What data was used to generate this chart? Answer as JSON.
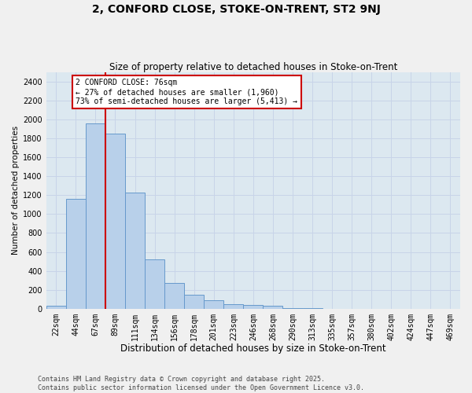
{
  "title": "2, CONFORD CLOSE, STOKE-ON-TRENT, ST2 9NJ",
  "subtitle": "Size of property relative to detached houses in Stoke-on-Trent",
  "xlabel": "Distribution of detached houses by size in Stoke-on-Trent",
  "ylabel": "Number of detached properties",
  "categories": [
    "22sqm",
    "44sqm",
    "67sqm",
    "89sqm",
    "111sqm",
    "134sqm",
    "156sqm",
    "178sqm",
    "201sqm",
    "223sqm",
    "246sqm",
    "268sqm",
    "290sqm",
    "313sqm",
    "335sqm",
    "357sqm",
    "380sqm",
    "402sqm",
    "424sqm",
    "447sqm",
    "469sqm"
  ],
  "values": [
    30,
    1160,
    1960,
    1850,
    1230,
    520,
    270,
    150,
    90,
    50,
    40,
    30,
    10,
    5,
    0,
    0,
    0,
    0,
    0,
    0,
    0
  ],
  "bar_color": "#b8d0ea",
  "bar_edge_color": "#6699cc",
  "vline_index": 2.5,
  "vline_color": "#cc0000",
  "annotation_text": "2 CONFORD CLOSE: 76sqm\n← 27% of detached houses are smaller (1,960)\n73% of semi-detached houses are larger (5,413) →",
  "annotation_box_color": "#ffffff",
  "annotation_box_edge": "#cc0000",
  "ylim": [
    0,
    2500
  ],
  "yticks": [
    0,
    200,
    400,
    600,
    800,
    1000,
    1200,
    1400,
    1600,
    1800,
    2000,
    2200,
    2400
  ],
  "grid_color": "#c8d4e8",
  "bg_color": "#dce8f0",
  "fig_color": "#f0f0f0",
  "footer": "Contains HM Land Registry data © Crown copyright and database right 2025.\nContains public sector information licensed under the Open Government Licence v3.0.",
  "title_fontsize": 10,
  "subtitle_fontsize": 8.5,
  "xlabel_fontsize": 8.5,
  "ylabel_fontsize": 7.5,
  "tick_fontsize": 7,
  "annotation_fontsize": 7,
  "footer_fontsize": 6
}
